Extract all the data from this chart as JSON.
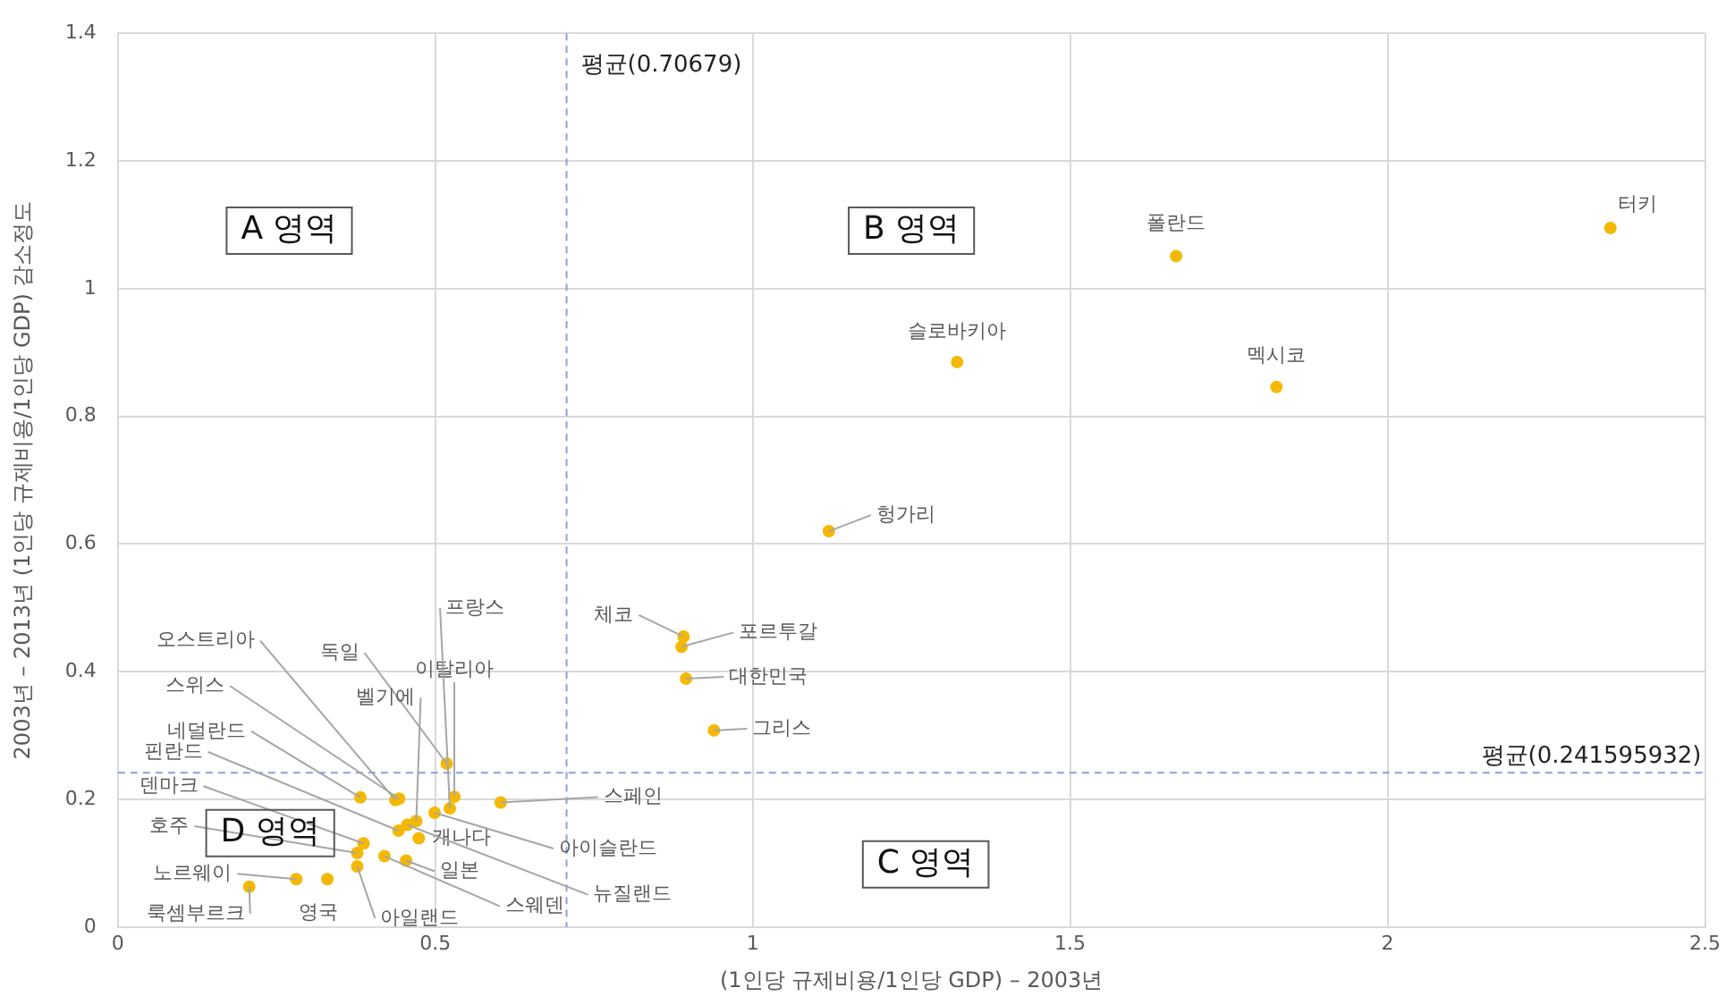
{
  "chart_data": {
    "type": "scatter",
    "xlabel": "(1인당 규제비용/1인당 GDP) – 2003년",
    "ylabel": "2003년 – 2013년 (1인당 규제비용/1인당 GDP) 감소정도",
    "xlim": [
      0,
      2.5
    ],
    "xticks": [
      0,
      0.5,
      1,
      1.5,
      2,
      2.5
    ],
    "ylim": [
      0,
      1.4
    ],
    "yticks": [
      0,
      0.2,
      0.4,
      0.6,
      0.8,
      1,
      1.2,
      1.4
    ],
    "grid": true,
    "legend": false,
    "marker": "circle",
    "series": [
      {
        "name": "룩셈부르크",
        "color": "#f5b800",
        "x": [
          0.207
        ],
        "values": [
          0.063
        ]
      },
      {
        "name": "노르웨이",
        "color": "#f5b800",
        "x": [
          0.281
        ],
        "values": [
          0.075
        ]
      },
      {
        "name": "영국",
        "color": "#f5b800",
        "x": [
          0.33
        ],
        "values": [
          0.075
        ]
      },
      {
        "name": "아일랜드",
        "color": "#f5b800",
        "x": [
          0.377
        ],
        "values": [
          0.095
        ]
      },
      {
        "name": "호주",
        "color": "#f5b800",
        "x": [
          0.377
        ],
        "values": [
          0.116
        ]
      },
      {
        "name": "덴마크",
        "color": "#f5b800",
        "x": [
          0.387
        ],
        "values": [
          0.131
        ]
      },
      {
        "name": "스웨덴",
        "color": "#f5b800",
        "x": [
          0.42
        ],
        "values": [
          0.111
        ]
      },
      {
        "name": "일본",
        "color": "#f5b800",
        "x": [
          0.454
        ],
        "values": [
          0.104
        ]
      },
      {
        "name": "핀란드",
        "color": "#f5b800",
        "x": [
          0.442
        ],
        "values": [
          0.151
        ]
      },
      {
        "name": "네덜란드",
        "color": "#f5b800",
        "x": [
          0.382
        ],
        "values": [
          0.203
        ]
      },
      {
        "name": "스위스",
        "color": "#f5b800",
        "x": [
          0.443
        ],
        "values": [
          0.201
        ]
      },
      {
        "name": "오스트리아",
        "color": "#f5b800",
        "x": [
          0.437
        ],
        "values": [
          0.199
        ]
      },
      {
        "name": "독일",
        "color": "#f5b800",
        "x": [
          0.518
        ],
        "values": [
          0.256
        ]
      },
      {
        "name": "벨기에",
        "color": "#f5b800",
        "x": [
          0.47
        ],
        "values": [
          0.166
        ]
      },
      {
        "name": "이탈리아",
        "color": "#f5b800",
        "x": [
          0.53
        ],
        "values": [
          0.204
        ]
      },
      {
        "name": "프랑스",
        "color": "#f5b800",
        "x": [
          0.523
        ],
        "values": [
          0.186
        ]
      },
      {
        "name": "스페인",
        "color": "#f5b800",
        "x": [
          0.603
        ],
        "values": [
          0.195
        ]
      },
      {
        "name": "캐나다",
        "color": "#f5b800",
        "x": [
          0.474
        ],
        "values": [
          0.139
        ]
      },
      {
        "name": "아이슬란드",
        "color": "#f5b800",
        "x": [
          0.499
        ],
        "values": [
          0.179
        ]
      },
      {
        "name": "뉴질랜드",
        "color": "#f5b800",
        "x": [
          0.456
        ],
        "values": [
          0.16
        ]
      },
      {
        "name": "체코",
        "color": "#f5b800",
        "x": [
          0.891
        ],
        "values": [
          0.455
        ]
      },
      {
        "name": "포르투갈",
        "color": "#f5b800",
        "x": [
          0.888
        ],
        "values": [
          0.439
        ]
      },
      {
        "name": "대한민국",
        "color": "#f5b800",
        "x": [
          0.895
        ],
        "values": [
          0.389
        ]
      },
      {
        "name": "그리스",
        "color": "#f5b800",
        "x": [
          0.939
        ],
        "values": [
          0.308
        ]
      },
      {
        "name": "헝가리",
        "color": "#f5b800",
        "x": [
          1.12
        ],
        "values": [
          0.62
        ]
      },
      {
        "name": "슬로바키아",
        "color": "#f5b800",
        "x": [
          1.322
        ],
        "values": [
          0.885
        ]
      },
      {
        "name": "폴란드",
        "color": "#f5b800",
        "x": [
          1.667
        ],
        "values": [
          1.051
        ]
      },
      {
        "name": "멕시코",
        "color": "#f5b800",
        "x": [
          1.825
        ],
        "values": [
          0.846
        ]
      },
      {
        "name": "터키",
        "color": "#f5b800",
        "x": [
          2.351
        ],
        "values": [
          1.095
        ]
      }
    ],
    "ref_lines": [
      {
        "axis": "x",
        "value": 0.70679,
        "label": "평균(0.70679)",
        "color": "#8e9fd8",
        "line_style": "dashed"
      },
      {
        "axis": "y",
        "value": 0.241595932,
        "label": "평균(0.241595932)",
        "color": "#8e9fd8",
        "line_style": "dashed"
      }
    ],
    "annotations": [
      "A 영역",
      "B 영역",
      "C 영역",
      "D 영역"
    ]
  }
}
